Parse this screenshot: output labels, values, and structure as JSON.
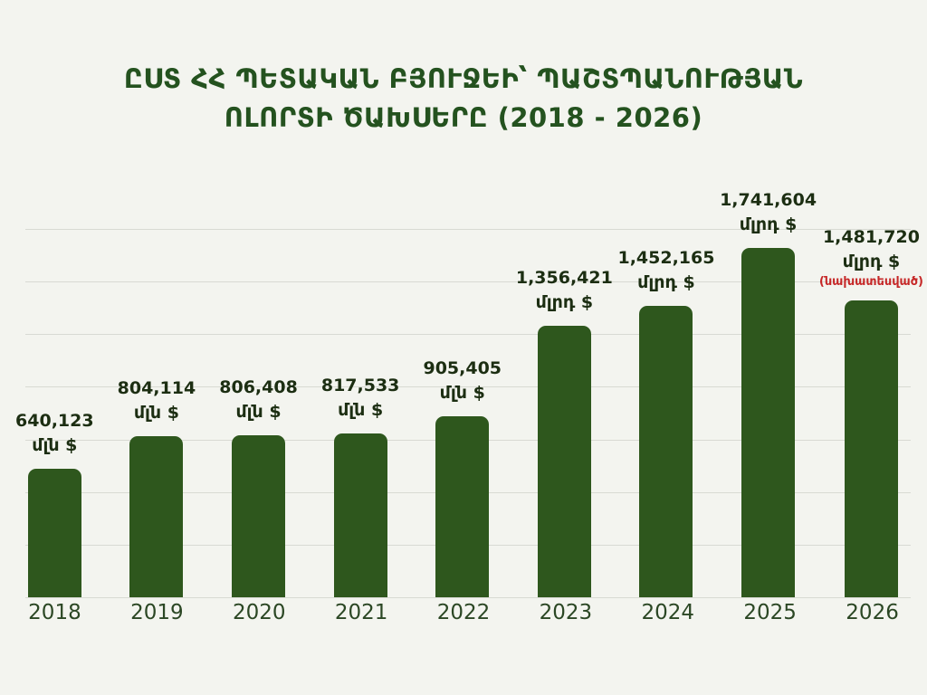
{
  "title": {
    "line1": "ԸՍՏ ՀՀ ՊԵՏԱԿԱՆ ԲՅՈՒՋԵԻ՝ ՊԱՇՏՊԱՆՈՒԹՅԱՆ",
    "line2": "ՈԼՈՐՏԻ ԾԱԽՍԵՐԸ (2018 - 2026)"
  },
  "chart_data": {
    "type": "bar",
    "title": "ԸՍՏ ՀՀ ՊԵՏԱԿԱՆ ԲՅՈՒՋԵԻ՝ ՊԱՇՏՊԱՆՈՒԹՅԱՆ ՈԼՈՐՏԻ ԾԱԽՍԵՐԸ (2018 - 2026)",
    "categories": [
      "2018",
      "2019",
      "2020",
      "2021",
      "2022",
      "2023",
      "2024",
      "2025",
      "2026"
    ],
    "values": [
      640123,
      804114,
      806408,
      817533,
      905405,
      1356421,
      1452165,
      1741604,
      1481720
    ],
    "bar_labels": [
      {
        "value_text": "640,123",
        "unit": "մլն $"
      },
      {
        "value_text": "804,114",
        "unit": "մլն $"
      },
      {
        "value_text": "806,408",
        "unit": "մլն $"
      },
      {
        "value_text": "817,533",
        "unit": "մլն $"
      },
      {
        "value_text": "905,405",
        "unit": "մլն $"
      },
      {
        "value_text": "1,356,421",
        "unit": "մլրդ $"
      },
      {
        "value_text": "1,452,165",
        "unit": "մլրդ $"
      },
      {
        "value_text": "1,741,604",
        "unit": "մլրդ $"
      },
      {
        "value_text": "1,481,720",
        "unit": "մլրդ $",
        "note": "(նախատեսված)"
      }
    ],
    "xlabel": "",
    "ylabel": "",
    "grid": true,
    "gridline_count": 8,
    "legend": false
  },
  "colors": {
    "background": "#f3f4ef",
    "bar": "#2e571d",
    "title_text": "#24521f",
    "value_text": "#1c2e12",
    "axis_text": "#2b4724",
    "note_red": "#c62828",
    "gridline": "#d8dad3"
  }
}
